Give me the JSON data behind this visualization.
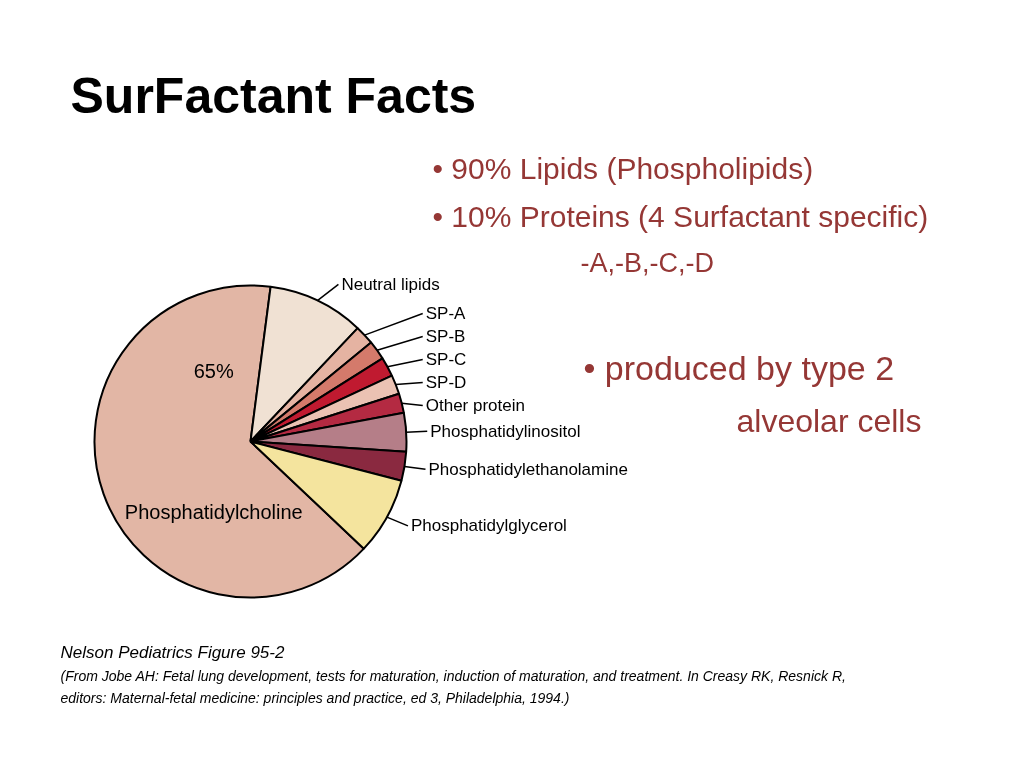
{
  "chart_data": {
    "type": "pie",
    "title": "SurFactant Facts",
    "categories": [
      "Phosphatidylcholine",
      "Neutral lipids",
      "SP-A",
      "SP-B",
      "SP-C",
      "SP-D",
      "Other protein",
      "Phosphatidylinositol",
      "Phosphatidylethanolamine",
      "Phosphatidylglycerol"
    ],
    "values": [
      65,
      10,
      2,
      2,
      2,
      2,
      2,
      4,
      3,
      8
    ],
    "colors": [
      "#e2b6a5",
      "#f0e1d3",
      "#e5b3a2",
      "#d47a6b",
      "#c01a30",
      "#ebc2b3",
      "#b42a42",
      "#b57e88",
      "#8a2940",
      "#f4e49e"
    ],
    "value_labels": [
      "65%",
      null,
      null,
      null,
      null,
      null,
      null,
      null,
      null,
      null
    ],
    "annotations": [
      "• 90% Lipids (Phospholipids)",
      "• 10% Proteins (4 Surfactant specific)",
      "-A,-B,-C,-D",
      "• produced by type 2",
      "alveolar cells",
      "Nelson Pediatrics Figure 95-2",
      "(From Jobe AH: Fetal lung development, tests for maturation, induction of maturation, and treatment. In Creasy RK, Resnick R, editors: Maternal-fetal medicine: principles and practice, ed 3, Philadelphia, 1994.)"
    ]
  }
}
